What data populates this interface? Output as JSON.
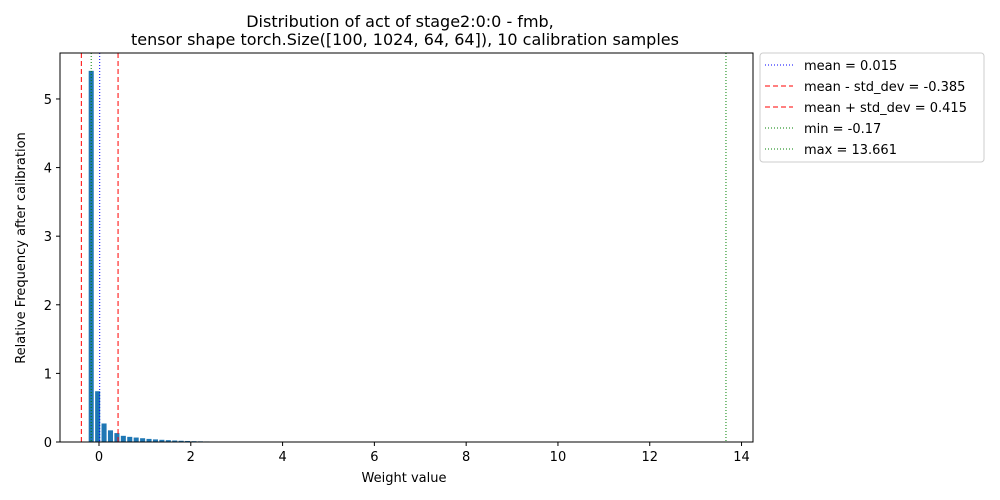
{
  "chart_data": {
    "type": "bar",
    "title": "Distribution of act of stage2:0:0 - fmb,",
    "subtitle": "tensor shape torch.Size([100, 1024, 64, 64]), 10 calibration samples",
    "xlabel": "Weight value",
    "ylabel": "Relative Frequency after calibration",
    "xlim": [
      -0.85,
      14.25
    ],
    "ylim": [
      0,
      5.67
    ],
    "xticks": [
      0,
      2,
      4,
      6,
      8,
      10,
      12,
      14
    ],
    "yticks": [
      0,
      1,
      2,
      3,
      4,
      5
    ],
    "bar_width": 0.11,
    "bar_color": "#1f77b4",
    "bars": {
      "x": [
        -0.17,
        -0.03,
        0.11,
        0.25,
        0.39,
        0.53,
        0.67,
        0.81,
        0.95,
        1.09,
        1.23,
        1.37,
        1.51,
        1.65,
        1.79,
        1.93,
        2.07,
        2.21,
        2.35,
        2.49
      ],
      "values": [
        5.41,
        0.74,
        0.27,
        0.17,
        0.13,
        0.09,
        0.075,
        0.065,
        0.055,
        0.045,
        0.038,
        0.032,
        0.027,
        0.022,
        0.018,
        0.015,
        0.012,
        0.01,
        0.008,
        0.006
      ]
    },
    "reference_lines": [
      {
        "label": "mean = 0.015",
        "x": 0.015,
        "style": "dotted",
        "color": "#0000ff"
      },
      {
        "label": "mean - std_dev = -0.385",
        "x": -0.385,
        "style": "dashed",
        "color": "#ff0000"
      },
      {
        "label": "mean + std_dev = 0.415",
        "x": 0.415,
        "style": "dashed",
        "color": "#ff0000"
      },
      {
        "label": "min = -0.17",
        "x": -0.17,
        "style": "dotted",
        "color": "#008000"
      },
      {
        "label": "max = 13.661",
        "x": 13.661,
        "style": "dotted",
        "color": "#008000"
      }
    ],
    "legend_position": "outside-right-top"
  }
}
